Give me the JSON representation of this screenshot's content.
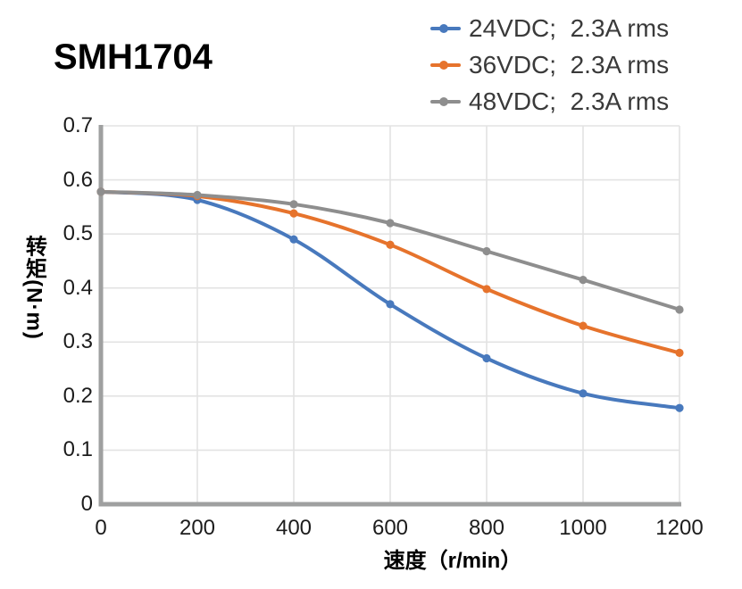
{
  "title": "SMH1704",
  "chart_data": {
    "type": "line",
    "title": "SMH1704",
    "xlabel": "速度（r/min）",
    "ylabel": "转矩(N·m)",
    "x": [
      0,
      200,
      400,
      600,
      800,
      1000,
      1200
    ],
    "x_tick_labels": [
      "0",
      "200",
      "400",
      "600",
      "800",
      "1000",
      "1200"
    ],
    "y_ticks": [
      0,
      0.1,
      0.2,
      0.3,
      0.4,
      0.5,
      0.6,
      0.7
    ],
    "y_tick_labels": [
      "0",
      "0.1",
      "0.2",
      "0.3",
      "0.4",
      "0.5",
      "0.6",
      "0.7"
    ],
    "xlim": [
      0,
      1200
    ],
    "ylim": [
      0,
      0.7
    ],
    "grid": true,
    "legend_position": "top-right",
    "series": [
      {
        "name": "24VDC;  2.3A rms",
        "color": "#4879BD",
        "values": [
          0.578,
          0.563,
          0.49,
          0.37,
          0.27,
          0.205,
          0.178
        ]
      },
      {
        "name": "36VDC;  2.3A rms",
        "color": "#E6732C",
        "values": [
          0.578,
          0.57,
          0.538,
          0.48,
          0.398,
          0.33,
          0.28
        ]
      },
      {
        "name": "48VDC;  2.3A rms",
        "color": "#8E8E8E",
        "values": [
          0.578,
          0.572,
          0.555,
          0.52,
          0.468,
          0.415,
          0.36
        ]
      }
    ],
    "colors": {
      "grid": "#E3E3E3",
      "axis": "#9FA0A0",
      "tick_text": "#1c1c1c",
      "legend_text": "#3a3a3a",
      "title_text": "#000000"
    }
  }
}
